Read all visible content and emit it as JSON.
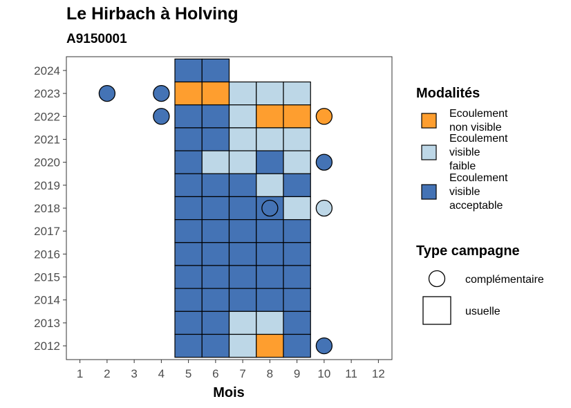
{
  "chart_data": {
    "type": "heatmap",
    "title": "Le Hirbach à Holving",
    "subtitle": "A9150001",
    "xlabel": "Mois",
    "ylabel": "",
    "x_ticks": [
      1,
      2,
      3,
      4,
      5,
      6,
      7,
      8,
      9,
      10,
      11,
      12
    ],
    "y_ticks": [
      2012,
      2013,
      2014,
      2015,
      2016,
      2017,
      2018,
      2019,
      2020,
      2021,
      2022,
      2023,
      2024
    ],
    "xlim": [
      0.5,
      12.5
    ],
    "ylim": [
      2011.4,
      2024.6
    ],
    "colors": {
      "non_visible": "#FE9E2F",
      "faible": "#BDD7E7",
      "acceptable": "#4473B5"
    },
    "legend_modalites": {
      "title": "Modalités",
      "items": [
        {
          "key": "non_visible",
          "lines": [
            "Ecoulement",
            "non visible"
          ]
        },
        {
          "key": "faible",
          "lines": [
            "Ecoulement",
            "visible",
            "faible"
          ]
        },
        {
          "key": "acceptable",
          "lines": [
            "Ecoulement",
            "visible",
            "acceptable"
          ]
        }
      ]
    },
    "legend_type": {
      "title": "Type campagne",
      "items": [
        {
          "shape": "circle",
          "label": "complémentaire"
        },
        {
          "shape": "square",
          "label": "usuelle"
        }
      ]
    },
    "usuelle": [
      {
        "year": 2024,
        "month": 5,
        "value": "acceptable"
      },
      {
        "year": 2024,
        "month": 6,
        "value": "acceptable"
      },
      {
        "year": 2023,
        "month": 5,
        "value": "non_visible"
      },
      {
        "year": 2023,
        "month": 6,
        "value": "non_visible"
      },
      {
        "year": 2023,
        "month": 7,
        "value": "faible"
      },
      {
        "year": 2023,
        "month": 8,
        "value": "faible"
      },
      {
        "year": 2023,
        "month": 9,
        "value": "faible"
      },
      {
        "year": 2022,
        "month": 5,
        "value": "acceptable"
      },
      {
        "year": 2022,
        "month": 6,
        "value": "acceptable"
      },
      {
        "year": 2022,
        "month": 7,
        "value": "faible"
      },
      {
        "year": 2022,
        "month": 8,
        "value": "non_visible"
      },
      {
        "year": 2022,
        "month": 9,
        "value": "non_visible"
      },
      {
        "year": 2021,
        "month": 5,
        "value": "acceptable"
      },
      {
        "year": 2021,
        "month": 6,
        "value": "acceptable"
      },
      {
        "year": 2021,
        "month": 7,
        "value": "faible"
      },
      {
        "year": 2021,
        "month": 8,
        "value": "faible"
      },
      {
        "year": 2021,
        "month": 9,
        "value": "faible"
      },
      {
        "year": 2020,
        "month": 5,
        "value": "acceptable"
      },
      {
        "year": 2020,
        "month": 6,
        "value": "faible"
      },
      {
        "year": 2020,
        "month": 7,
        "value": "faible"
      },
      {
        "year": 2020,
        "month": 8,
        "value": "acceptable"
      },
      {
        "year": 2020,
        "month": 9,
        "value": "faible"
      },
      {
        "year": 2019,
        "month": 5,
        "value": "acceptable"
      },
      {
        "year": 2019,
        "month": 6,
        "value": "acceptable"
      },
      {
        "year": 2019,
        "month": 7,
        "value": "acceptable"
      },
      {
        "year": 2019,
        "month": 8,
        "value": "faible"
      },
      {
        "year": 2019,
        "month": 9,
        "value": "acceptable"
      },
      {
        "year": 2018,
        "month": 5,
        "value": "acceptable"
      },
      {
        "year": 2018,
        "month": 6,
        "value": "acceptable"
      },
      {
        "year": 2018,
        "month": 7,
        "value": "acceptable"
      },
      {
        "year": 2018,
        "month": 8,
        "value": "acceptable"
      },
      {
        "year": 2018,
        "month": 9,
        "value": "faible"
      },
      {
        "year": 2017,
        "month": 5,
        "value": "acceptable"
      },
      {
        "year": 2017,
        "month": 6,
        "value": "acceptable"
      },
      {
        "year": 2017,
        "month": 7,
        "value": "acceptable"
      },
      {
        "year": 2017,
        "month": 8,
        "value": "acceptable"
      },
      {
        "year": 2017,
        "month": 9,
        "value": "acceptable"
      },
      {
        "year": 2016,
        "month": 5,
        "value": "acceptable"
      },
      {
        "year": 2016,
        "month": 6,
        "value": "acceptable"
      },
      {
        "year": 2016,
        "month": 7,
        "value": "acceptable"
      },
      {
        "year": 2016,
        "month": 8,
        "value": "acceptable"
      },
      {
        "year": 2016,
        "month": 9,
        "value": "acceptable"
      },
      {
        "year": 2015,
        "month": 5,
        "value": "acceptable"
      },
      {
        "year": 2015,
        "month": 6,
        "value": "acceptable"
      },
      {
        "year": 2015,
        "month": 7,
        "value": "acceptable"
      },
      {
        "year": 2015,
        "month": 8,
        "value": "acceptable"
      },
      {
        "year": 2015,
        "month": 9,
        "value": "acceptable"
      },
      {
        "year": 2014,
        "month": 5,
        "value": "acceptable"
      },
      {
        "year": 2014,
        "month": 6,
        "value": "acceptable"
      },
      {
        "year": 2014,
        "month": 7,
        "value": "acceptable"
      },
      {
        "year": 2014,
        "month": 8,
        "value": "acceptable"
      },
      {
        "year": 2014,
        "month": 9,
        "value": "acceptable"
      },
      {
        "year": 2013,
        "month": 5,
        "value": "acceptable"
      },
      {
        "year": 2013,
        "month": 6,
        "value": "acceptable"
      },
      {
        "year": 2013,
        "month": 7,
        "value": "faible"
      },
      {
        "year": 2013,
        "month": 8,
        "value": "faible"
      },
      {
        "year": 2013,
        "month": 9,
        "value": "acceptable"
      },
      {
        "year": 2012,
        "month": 5,
        "value": "acceptable"
      },
      {
        "year": 2012,
        "month": 6,
        "value": "acceptable"
      },
      {
        "year": 2012,
        "month": 7,
        "value": "faible"
      },
      {
        "year": 2012,
        "month": 8,
        "value": "non_visible"
      },
      {
        "year": 2012,
        "month": 9,
        "value": "acceptable"
      }
    ],
    "complementaire": [
      {
        "year": 2023,
        "month": 2,
        "value": "acceptable"
      },
      {
        "year": 2023,
        "month": 4,
        "value": "acceptable"
      },
      {
        "year": 2022,
        "month": 4,
        "value": "acceptable"
      },
      {
        "year": 2022,
        "month": 10,
        "value": "non_visible"
      },
      {
        "year": 2020,
        "month": 10,
        "value": "acceptable"
      },
      {
        "year": 2018,
        "month": 8,
        "value": "acceptable"
      },
      {
        "year": 2018,
        "month": 10,
        "value": "faible"
      },
      {
        "year": 2012,
        "month": 10,
        "value": "acceptable"
      }
    ]
  }
}
